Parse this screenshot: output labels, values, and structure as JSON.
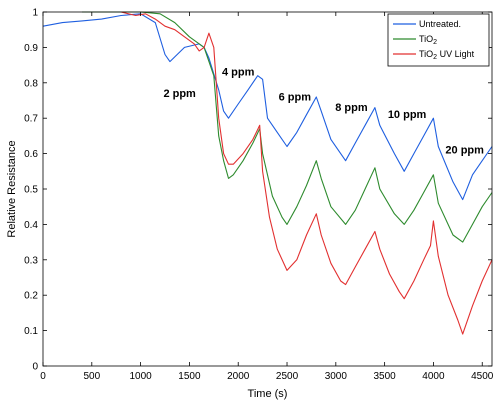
{
  "chart_data": {
    "type": "line",
    "xlabel": "Time (s)",
    "ylabel": "Relative Resistance",
    "xlim": [
      0,
      4600
    ],
    "ylim": [
      0,
      1.0
    ],
    "xticks": [
      0,
      500,
      1000,
      1500,
      2000,
      2500,
      3000,
      3500,
      4000,
      4500
    ],
    "yticks": [
      0,
      0.1,
      0.2,
      0.3,
      0.4,
      0.5,
      0.6,
      0.7,
      0.8,
      0.9,
      1
    ],
    "xtick_labels": [
      "0",
      "500",
      "1000",
      "1500",
      "2000",
      "2500",
      "3000",
      "3500",
      "4000",
      "4500"
    ],
    "ytick_labels": [
      "0",
      "0.1",
      "0.2",
      "0.3",
      "0.4",
      "0.5",
      "0.6",
      "0.7",
      "0.8",
      "0.9",
      "1"
    ],
    "grid": false,
    "legend_position": "top-right",
    "series": [
      {
        "name": "Untreated.",
        "color": "#1f5fe0",
        "points": [
          [
            0,
            0.96
          ],
          [
            200,
            0.97
          ],
          [
            400,
            0.975
          ],
          [
            600,
            0.98
          ],
          [
            800,
            0.99
          ],
          [
            1000,
            0.995
          ],
          [
            1150,
            0.97
          ],
          [
            1250,
            0.88
          ],
          [
            1300,
            0.86
          ],
          [
            1450,
            0.9
          ],
          [
            1600,
            0.91
          ],
          [
            1650,
            0.9
          ],
          [
            1700,
            0.87
          ],
          [
            1800,
            0.78
          ],
          [
            1850,
            0.72
          ],
          [
            1900,
            0.7
          ],
          [
            2000,
            0.74
          ],
          [
            2100,
            0.78
          ],
          [
            2200,
            0.82
          ],
          [
            2250,
            0.81
          ],
          [
            2300,
            0.7
          ],
          [
            2400,
            0.66
          ],
          [
            2500,
            0.62
          ],
          [
            2600,
            0.66
          ],
          [
            2700,
            0.71
          ],
          [
            2800,
            0.76
          ],
          [
            2850,
            0.72
          ],
          [
            2950,
            0.64
          ],
          [
            3100,
            0.58
          ],
          [
            3200,
            0.63
          ],
          [
            3300,
            0.68
          ],
          [
            3400,
            0.73
          ],
          [
            3450,
            0.68
          ],
          [
            3600,
            0.6
          ],
          [
            3700,
            0.55
          ],
          [
            3800,
            0.6
          ],
          [
            3900,
            0.65
          ],
          [
            4000,
            0.7
          ],
          [
            4050,
            0.62
          ],
          [
            4200,
            0.52
          ],
          [
            4300,
            0.47
          ],
          [
            4400,
            0.54
          ],
          [
            4500,
            0.58
          ],
          [
            4600,
            0.62
          ]
        ]
      },
      {
        "name": "TiO2",
        "color": "#2e8b2e",
        "points": [
          [
            400,
            1.0
          ],
          [
            600,
            1.0
          ],
          [
            800,
            1.0
          ],
          [
            1000,
            1.0
          ],
          [
            1200,
            0.995
          ],
          [
            1350,
            0.97
          ],
          [
            1500,
            0.93
          ],
          [
            1650,
            0.9
          ],
          [
            1750,
            0.82
          ],
          [
            1800,
            0.65
          ],
          [
            1850,
            0.58
          ],
          [
            1900,
            0.53
          ],
          [
            1950,
            0.54
          ],
          [
            2050,
            0.58
          ],
          [
            2150,
            0.63
          ],
          [
            2220,
            0.67
          ],
          [
            2250,
            0.6
          ],
          [
            2350,
            0.48
          ],
          [
            2450,
            0.42
          ],
          [
            2500,
            0.4
          ],
          [
            2600,
            0.45
          ],
          [
            2700,
            0.51
          ],
          [
            2800,
            0.58
          ],
          [
            2850,
            0.53
          ],
          [
            2950,
            0.45
          ],
          [
            3100,
            0.4
          ],
          [
            3200,
            0.44
          ],
          [
            3300,
            0.5
          ],
          [
            3400,
            0.56
          ],
          [
            3450,
            0.5
          ],
          [
            3600,
            0.43
          ],
          [
            3700,
            0.4
          ],
          [
            3800,
            0.44
          ],
          [
            3900,
            0.49
          ],
          [
            4000,
            0.54
          ],
          [
            4050,
            0.46
          ],
          [
            4200,
            0.37
          ],
          [
            4300,
            0.35
          ],
          [
            4400,
            0.4
          ],
          [
            4500,
            0.45
          ],
          [
            4600,
            0.49
          ]
        ]
      },
      {
        "name": "TiO2 UV Light",
        "color": "#e23030",
        "points": [
          [
            800,
            1.0
          ],
          [
            950,
            0.99
          ],
          [
            1050,
            0.995
          ],
          [
            1150,
            0.98
          ],
          [
            1250,
            0.96
          ],
          [
            1350,
            0.95
          ],
          [
            1450,
            0.93
          ],
          [
            1550,
            0.91
          ],
          [
            1600,
            0.89
          ],
          [
            1650,
            0.9
          ],
          [
            1700,
            0.94
          ],
          [
            1750,
            0.9
          ],
          [
            1800,
            0.7
          ],
          [
            1850,
            0.6
          ],
          [
            1900,
            0.57
          ],
          [
            1950,
            0.57
          ],
          [
            2050,
            0.6
          ],
          [
            2150,
            0.64
          ],
          [
            2220,
            0.68
          ],
          [
            2250,
            0.55
          ],
          [
            2320,
            0.42
          ],
          [
            2400,
            0.33
          ],
          [
            2500,
            0.27
          ],
          [
            2600,
            0.3
          ],
          [
            2700,
            0.37
          ],
          [
            2800,
            0.43
          ],
          [
            2850,
            0.37
          ],
          [
            2950,
            0.29
          ],
          [
            3050,
            0.24
          ],
          [
            3100,
            0.23
          ],
          [
            3200,
            0.28
          ],
          [
            3300,
            0.33
          ],
          [
            3400,
            0.38
          ],
          [
            3450,
            0.33
          ],
          [
            3550,
            0.26
          ],
          [
            3650,
            0.21
          ],
          [
            3700,
            0.19
          ],
          [
            3800,
            0.24
          ],
          [
            3900,
            0.3
          ],
          [
            3970,
            0.34
          ],
          [
            4000,
            0.41
          ],
          [
            4050,
            0.31
          ],
          [
            4150,
            0.2
          ],
          [
            4250,
            0.13
          ],
          [
            4300,
            0.09
          ],
          [
            4400,
            0.17
          ],
          [
            4500,
            0.24
          ],
          [
            4600,
            0.3
          ]
        ]
      }
    ],
    "annotations": [
      {
        "text": "2 ppm",
        "x": 1400,
        "y": 0.76
      },
      {
        "text": "4 ppm",
        "x": 2000,
        "y": 0.82
      },
      {
        "text": "6 ppm",
        "x": 2580,
        "y": 0.75
      },
      {
        "text": "8 ppm",
        "x": 3160,
        "y": 0.72
      },
      {
        "text": "10 ppm",
        "x": 3730,
        "y": 0.7
      },
      {
        "text": "20 ppm",
        "x": 4320,
        "y": 0.6
      }
    ]
  },
  "legend": {
    "untreated": "Untreated.",
    "tio2_base": "TiO",
    "tio2_sub": "2",
    "tio2uv_base": "TiO",
    "tio2uv_sub": "2",
    "tio2uv_suffix": " UV Light"
  }
}
